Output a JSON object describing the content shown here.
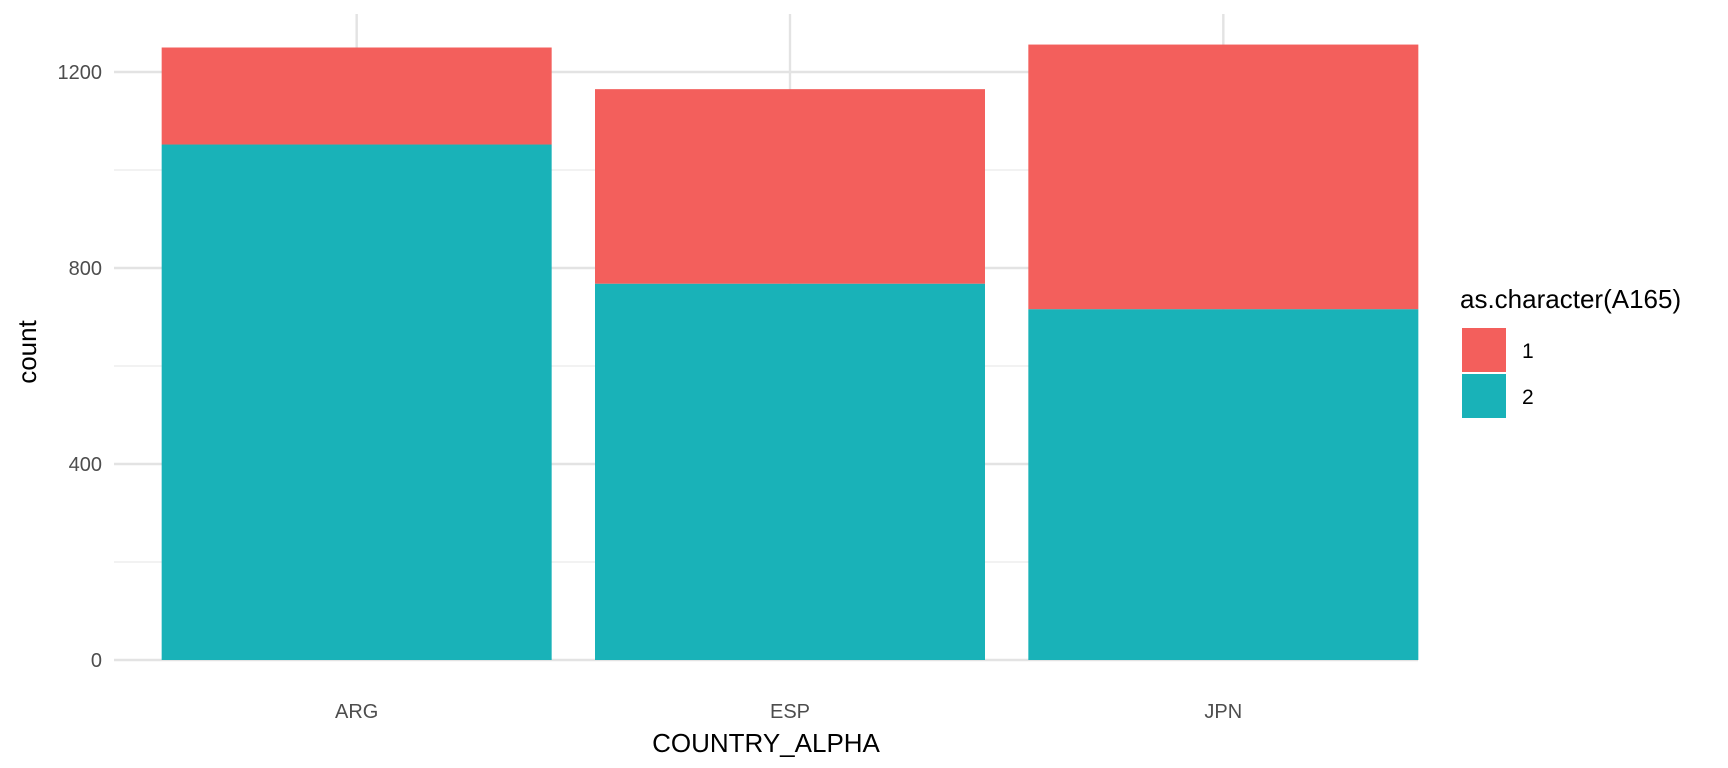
{
  "chart_data": {
    "type": "bar",
    "stacked": true,
    "categories": [
      "ARG",
      "ESP",
      "JPN"
    ],
    "series": [
      {
        "name": "1",
        "color": "#F35F5C",
        "values": [
          198,
          397,
          540
        ]
      },
      {
        "name": "2",
        "color": "#19B2B8",
        "values": [
          1052,
          768,
          716
        ]
      }
    ],
    "xlabel": "COUNTRY_ALPHA",
    "ylabel": "count",
    "ylim": [
      0,
      1300
    ],
    "yticks": [
      0,
      400,
      800,
      1200
    ],
    "grid": true,
    "legend": {
      "title": "as.character(A165)",
      "position": "right"
    }
  }
}
